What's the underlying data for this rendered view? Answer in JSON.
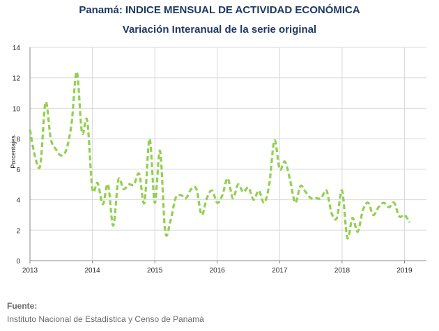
{
  "chart_data": {
    "type": "line",
    "title": "Panamá: INDICE MENSUAL DE ACTIVIDAD ECONÓMICA",
    "subtitle": "Variación Interanual de la serie original",
    "ylabel": "Porcentajes",
    "xlabel": "",
    "ylim": [
      0,
      14
    ],
    "yticks": [
      0,
      2,
      4,
      6,
      8,
      10,
      12,
      14
    ],
    "x_tick_labels": [
      "2013",
      "2014",
      "2015",
      "2016",
      "2017",
      "2018",
      "2019"
    ],
    "x_start": "2013-01",
    "grid": true,
    "series": [
      {
        "color": "#92d050",
        "style": "dashed",
        "values": [
          8.6,
          6.8,
          6.3,
          10.4,
          8.0,
          7.3,
          6.9,
          7.3,
          9.0,
          12.4,
          8.4,
          9.2,
          4.7,
          5.1,
          3.7,
          5.0,
          2.3,
          5.3,
          4.7,
          5.0,
          5.0,
          5.7,
          3.8,
          8.0,
          3.8,
          7.2,
          1.9,
          2.6,
          4.1,
          4.3,
          4.1,
          4.7,
          4.7,
          3.0,
          4.1,
          4.6,
          3.8,
          4.3,
          5.4,
          4.1,
          5.0,
          4.5,
          4.8,
          4.0,
          4.6,
          3.8,
          5.0,
          7.9,
          6.0,
          6.5,
          5.3,
          3.8,
          4.9,
          4.5,
          4.1,
          4.1,
          4.1,
          4.6,
          3.1,
          2.8,
          4.6,
          1.5,
          2.8,
          1.9,
          3.3,
          3.8,
          3.0,
          3.5,
          3.8,
          3.5,
          3.8,
          2.9,
          3.0,
          2.5
        ]
      }
    ]
  },
  "footer": {
    "source_label": "Fuente:",
    "source_text": "Instituto Nacional de Estadística y Censo de Panamá"
  }
}
